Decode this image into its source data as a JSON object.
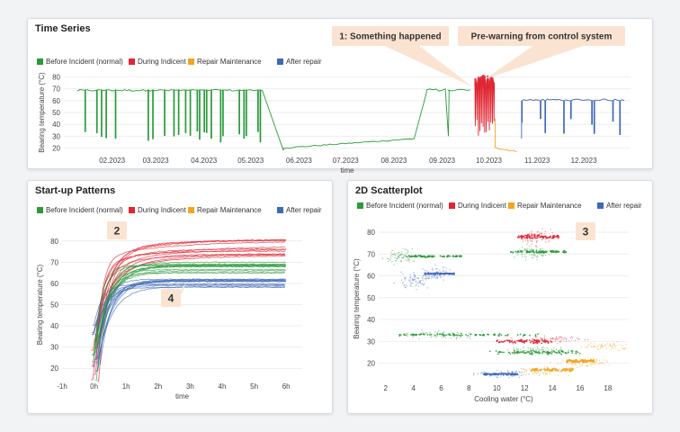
{
  "colors": {
    "before": "#2a9a3a",
    "during": "#e02633",
    "repair": "#f3a51c",
    "after": "#3f69b8",
    "callout_bg": "#fbe3d2",
    "grid": "#e6e6e6"
  },
  "legend": [
    "Before Incident (normal)",
    "During Indicent",
    "Repair Maintenance",
    "After repair"
  ],
  "time_series": {
    "title": "Time Series",
    "annotation_1": "1: Something happened",
    "annotation_2": "Pre-warning from control system",
    "chart_data": {
      "type": "line",
      "title": "Time Series",
      "xlabel": "time",
      "ylabel": "Bearing temperature (°C)",
      "x_ticks": [
        "02.2023",
        "03.2023",
        "04.2023",
        "05.2023",
        "06.2023",
        "07.2023",
        "08.2023",
        "09.2023",
        "10.2023",
        "11.2023",
        "12.2023"
      ],
      "y_ticks": [
        20,
        30,
        40,
        50,
        60,
        70,
        80
      ],
      "ylim": [
        15,
        85
      ],
      "series": [
        {
          "name": "Before Incident (normal)",
          "points": [
            [
              "2023-01-10",
              69
            ],
            [
              "2023-05-10",
              69
            ],
            [
              "2023-05-22",
              18
            ],
            [
              "2023-06-15",
              22
            ],
            [
              "2023-07-15",
              25
            ],
            [
              "2023-08-15",
              28
            ],
            [
              "2023-08-22",
              67
            ],
            [
              "2023-09-20",
              70
            ]
          ]
        },
        {
          "name": "During Indicent",
          "points": [
            [
              "2023-09-22",
              75
            ],
            [
              "2023-10-05",
              82
            ]
          ]
        },
        {
          "name": "Repair Maintenance",
          "points": [
            [
              "2023-10-05",
              20
            ],
            [
              "2023-10-20",
              17
            ]
          ]
        },
        {
          "name": "After repair",
          "points": [
            [
              "2023-10-22",
              60
            ],
            [
              "2023-12-28",
              62
            ]
          ]
        }
      ]
    }
  },
  "startup": {
    "title": "Start-up Patterns",
    "callout_a": "2",
    "callout_b": "4",
    "chart_data": {
      "type": "line",
      "title": "Start-up Patterns",
      "xlabel": "time",
      "ylabel": "Bearing temperature (°C)",
      "x_ticks": [
        "-1h",
        "0h",
        "1h",
        "2h",
        "3h",
        "4h",
        "5h",
        "6h"
      ],
      "y_ticks": [
        20,
        30,
        40,
        50,
        60,
        70,
        80
      ],
      "xlim": [
        -1,
        6.5
      ],
      "ylim": [
        15,
        85
      ],
      "series": [
        {
          "name": "Before Incident (normal)",
          "plateau": [
            65,
            70
          ]
        },
        {
          "name": "During Indicent",
          "plateau": [
            73,
            81
          ]
        },
        {
          "name": "Repair Maintenance",
          "plateau": []
        },
        {
          "name": "After repair",
          "plateau": [
            58,
            62
          ]
        }
      ]
    }
  },
  "scatter": {
    "title": "2D Scatterplot",
    "callout": "3",
    "chart_data": {
      "type": "scatter",
      "title": "2D Scatterplot",
      "xlabel": "Cooling water (°C)",
      "ylabel": "Bearing temperature (°C)",
      "x_ticks": [
        2,
        4,
        6,
        8,
        10,
        12,
        14,
        16,
        18
      ],
      "y_ticks": [
        20,
        30,
        40,
        50,
        60,
        70,
        80
      ],
      "xlim": [
        1.5,
        19.5
      ],
      "ylim": [
        12,
        87
      ],
      "series": [
        {
          "name": "Before Incident (normal)",
          "clusters": [
            [
              3,
              69
            ],
            [
              12.5,
              71
            ],
            [
              6,
              33
            ],
            [
              13,
              26
            ]
          ]
        },
        {
          "name": "During Indicent",
          "clusters": [
            [
              13,
              78
            ],
            [
              14,
              31
            ]
          ]
        },
        {
          "name": "Repair Maintenance",
          "clusters": [
            [
              13,
              16
            ],
            [
              16.5,
              20
            ],
            [
              18,
              28
            ]
          ]
        },
        {
          "name": "After repair",
          "clusters": [
            [
              5.5,
              61
            ],
            [
              4,
              58
            ],
            [
              10.5,
              15
            ]
          ]
        }
      ]
    }
  }
}
